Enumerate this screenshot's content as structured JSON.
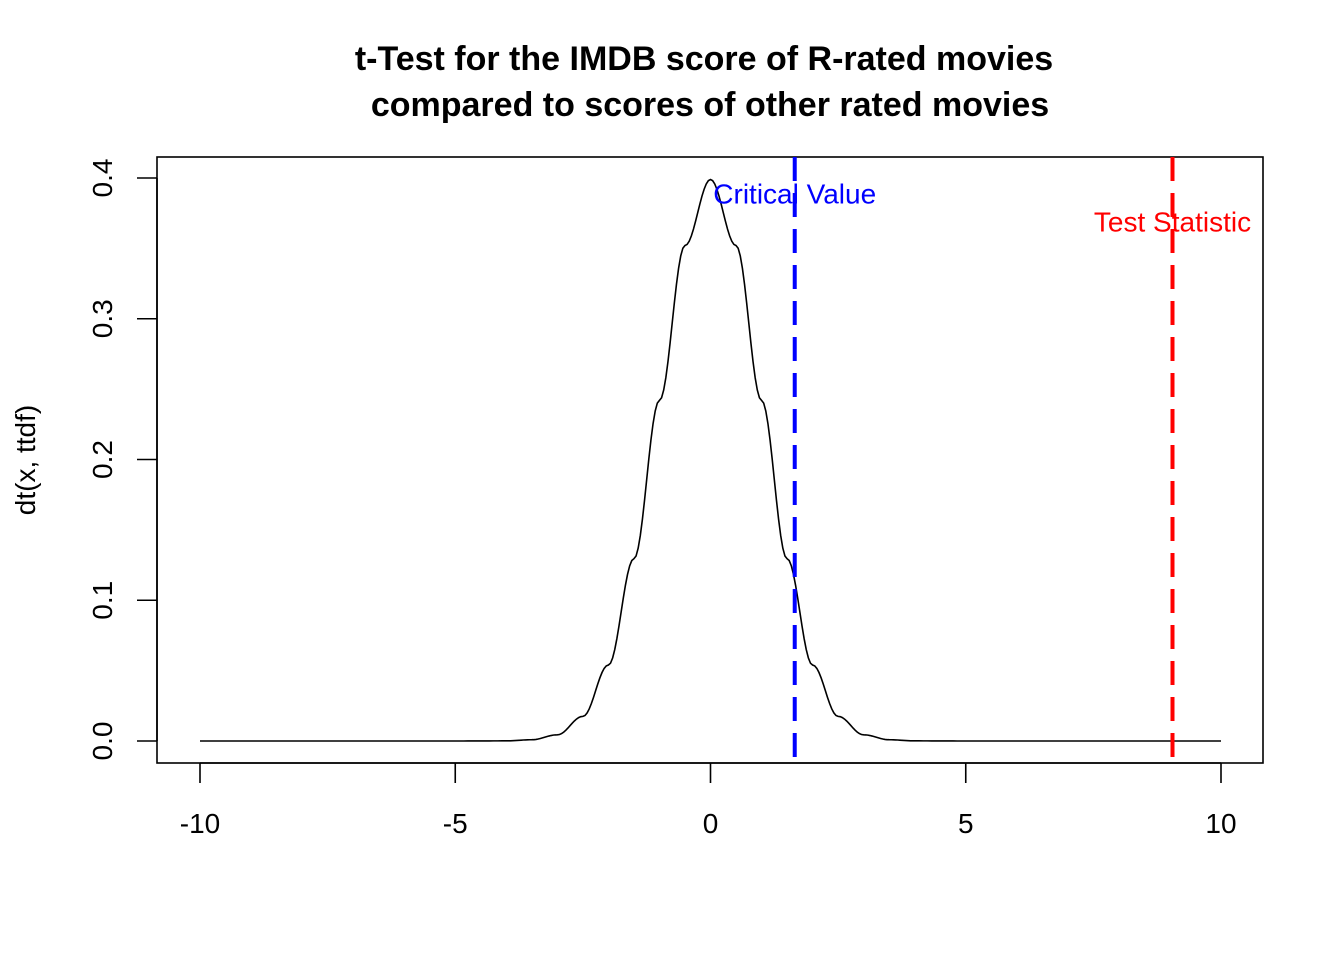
{
  "chart_data": {
    "type": "line",
    "title_lines": [
      "t-Test for the IMDB score of R-rated movies",
      "compared to scores of other rated movies"
    ],
    "xlabel": "",
    "ylabel": "dt(x, ttdf)",
    "xlim": [
      -10,
      10
    ],
    "ylim": [
      0,
      0.4
    ],
    "x_ticks": [
      -10,
      -5,
      0,
      5,
      10
    ],
    "x_tick_labels": [
      "-10",
      "-5",
      "0",
      "5",
      "10"
    ],
    "y_ticks": [
      0.0,
      0.1,
      0.2,
      0.3,
      0.4
    ],
    "y_tick_labels": [
      "0.0",
      "0.1",
      "0.2",
      "0.3",
      "0.4"
    ],
    "grid": false,
    "series": [
      {
        "color": "#000000",
        "x": [
          -10,
          -9,
          -8,
          -7,
          -6,
          -5,
          -4,
          -3.5,
          -3,
          -2.5,
          -2,
          -1.5,
          -1,
          -0.5,
          0,
          0.5,
          1,
          1.5,
          2,
          2.5,
          3,
          3.5,
          4,
          5,
          6,
          7,
          8,
          9,
          10
        ],
        "y": [
          0,
          0,
          0,
          0,
          0,
          0,
          0.0001,
          0.0009,
          0.0044,
          0.0175,
          0.054,
          0.1295,
          0.242,
          0.352,
          0.3989,
          0.352,
          0.242,
          0.1295,
          0.054,
          0.0175,
          0.0044,
          0.0009,
          0.0001,
          0,
          0,
          0,
          0,
          0,
          0
        ]
      }
    ],
    "annotations": [
      {
        "label": "Critical Value",
        "x": 1.65,
        "label_y": 0.389,
        "color": "#0000ff",
        "line_style": "dashed"
      },
      {
        "label": "Test Statistic",
        "x": 9.05,
        "label_y": 0.369,
        "color": "#ff0000",
        "line_style": "dashed"
      }
    ]
  }
}
